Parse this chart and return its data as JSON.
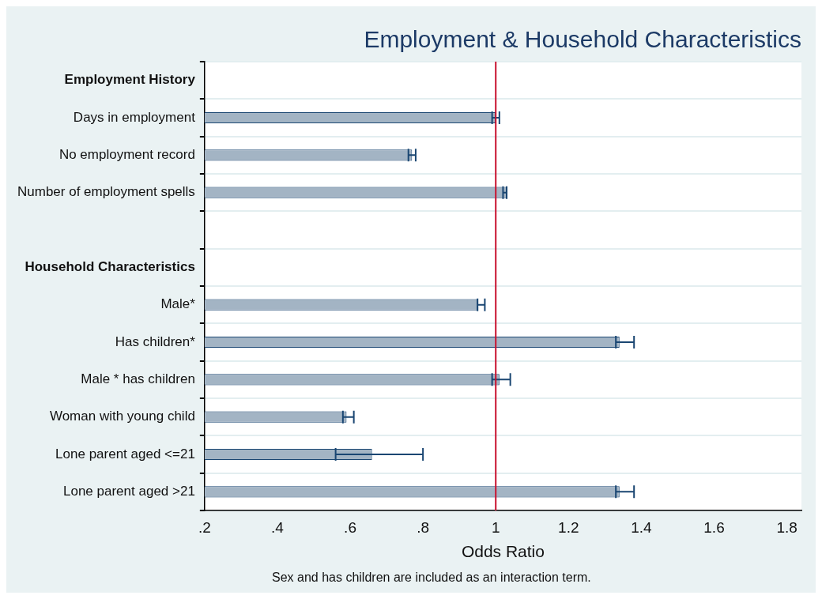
{
  "chart_data": {
    "type": "bar",
    "orientation": "horizontal",
    "title": "Employment & Household Characteristics",
    "xlabel": "Odds Ratio",
    "categories": [
      "Employment History",
      "Days in employment",
      "No employment record",
      "Number of employment spells",
      null,
      "Household Characteristics",
      "Male*",
      "Has children*",
      "Male * has children",
      "Woman with young child",
      "Lone parent aged <=21",
      "Lone parent aged >21"
    ],
    "values": [
      null,
      1.0,
      0.77,
      1.03,
      null,
      null,
      0.95,
      1.34,
      1.01,
      0.59,
      0.66,
      1.34
    ],
    "errors": [
      null,
      [
        0.99,
        1.01
      ],
      [
        0.76,
        0.78
      ],
      [
        1.02,
        1.03
      ],
      null,
      null,
      [
        0.95,
        0.97
      ],
      [
        1.33,
        1.38
      ],
      [
        0.99,
        1.04
      ],
      [
        0.58,
        0.61
      ],
      [
        0.56,
        0.8
      ],
      [
        1.33,
        1.38
      ]
    ],
    "color": "#a3b4c4",
    "xlim": [
      0.2,
      1.84
    ],
    "xticks": [
      {
        "value": 0.2,
        "label": ".2"
      },
      {
        "value": 0.4,
        "label": ".4"
      },
      {
        "value": 0.6,
        "label": ".6"
      },
      {
        "value": 0.8,
        "label": ".8"
      },
      1,
      1.2,
      1.4,
      1.6,
      1.8
    ],
    "ref_lines": [
      {
        "axis": "x",
        "value": 1,
        "color": "#c8102e"
      }
    ],
    "grid": "y",
    "legend": false,
    "annotations": [
      "Sex and has children are included as an interaction term."
    ]
  }
}
